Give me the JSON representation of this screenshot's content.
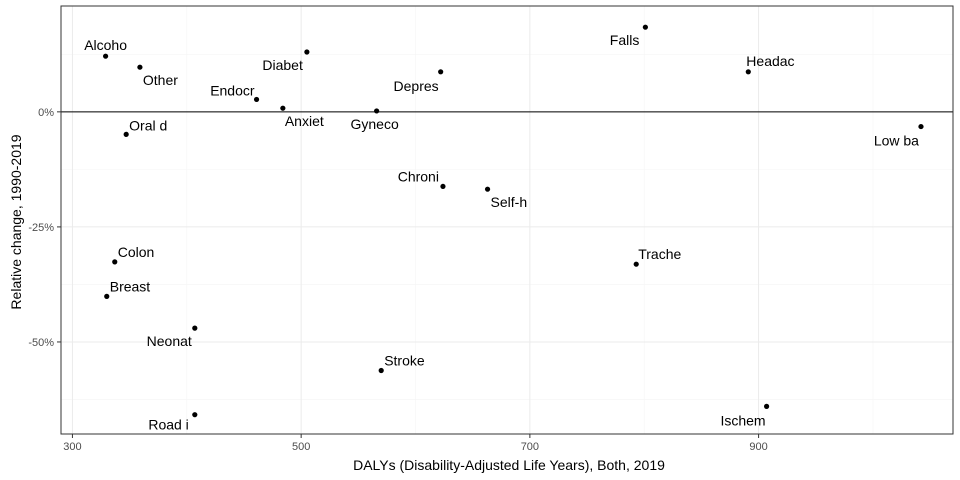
{
  "chart_data": {
    "type": "scatter",
    "xlabel": "DALYs (Disability-Adjusted Life Years), Both, 2019",
    "ylabel": "Relative change, 1990-2019",
    "xlim": [
      290,
      1070
    ],
    "ylim": [
      -0.7,
      0.23
    ],
    "x_ticks": [
      300,
      500,
      700,
      900
    ],
    "x_tick_labels": [
      "300",
      "500",
      "700",
      "900"
    ],
    "y_ticks": [
      0,
      -0.25,
      -0.5
    ],
    "y_tick_labels": [
      "0%",
      "-25%",
      "-50%"
    ],
    "reference_line_y": 0,
    "grid": true,
    "points": [
      {
        "label": "Alcoho",
        "x": 329,
        "y": 0.121
      },
      {
        "label": "Other",
        "x": 359,
        "y": 0.097
      },
      {
        "label": "Diabet",
        "x": 505,
        "y": 0.13
      },
      {
        "label": "Falls",
        "x": 801,
        "y": 0.184
      },
      {
        "label": "Headac",
        "x": 891,
        "y": 0.087
      },
      {
        "label": "Endocr",
        "x": 461,
        "y": 0.027
      },
      {
        "label": "Depres",
        "x": 622,
        "y": 0.087
      },
      {
        "label": "Anxiet",
        "x": 484,
        "y": 0.008
      },
      {
        "label": "Gyneco",
        "x": 566,
        "y": 0.002
      },
      {
        "label": "Oral d",
        "x": 347,
        "y": -0.049
      },
      {
        "label": "Low ba",
        "x": 1042,
        "y": -0.032
      },
      {
        "label": "Chroni",
        "x": 624,
        "y": -0.162
      },
      {
        "label": "Self-h",
        "x": 663,
        "y": -0.168
      },
      {
        "label": "Colon",
        "x": 337,
        "y": -0.326
      },
      {
        "label": "Breast",
        "x": 330,
        "y": -0.401
      },
      {
        "label": "Trache",
        "x": 793,
        "y": -0.331
      },
      {
        "label": "Neonat",
        "x": 407,
        "y": -0.47
      },
      {
        "label": "Stroke",
        "x": 570,
        "y": -0.562
      },
      {
        "label": "Road i",
        "x": 407,
        "y": -0.658
      },
      {
        "label": "Ischem",
        "x": 907,
        "y": -0.64
      }
    ]
  }
}
